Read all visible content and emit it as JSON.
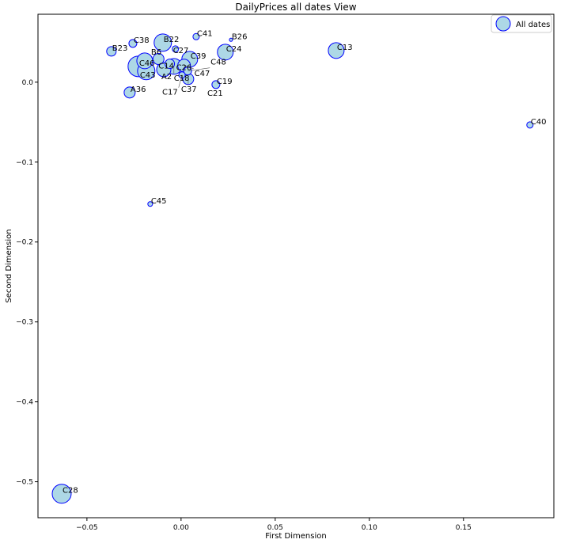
{
  "chart_data": {
    "type": "scatter",
    "title": "DailyPrices all dates View",
    "xlabel": "First Dimension",
    "ylabel": "Second Dimension",
    "xlim": [
      -0.076,
      0.198
    ],
    "ylim": [
      -0.545,
      0.085
    ],
    "xticks": [
      -0.05,
      0.0,
      0.05,
      0.1,
      0.15
    ],
    "xtick_labels": [
      "−0.05",
      "0.00",
      "0.05",
      "0.10",
      "0.15"
    ],
    "yticks": [
      0.0,
      -0.1,
      -0.2,
      -0.3,
      -0.4,
      -0.5
    ],
    "ytick_labels": [
      "0.0",
      "−0.1",
      "−0.2",
      "−0.3",
      "−0.4",
      "−0.5"
    ],
    "grid": false,
    "legend": {
      "position": "top-right",
      "entries": [
        "All dates"
      ]
    },
    "marker_fill": "#add8e6",
    "marker_edge": "#0000ff",
    "series": [
      {
        "name": "All dates",
        "points": [
          {
            "label": "C38",
            "x": -0.0256,
            "y": 0.0485,
            "size": 5
          },
          {
            "label": "B23",
            "x": -0.037,
            "y": 0.0386,
            "size": 6
          },
          {
            "label": "B22",
            "x": -0.0097,
            "y": 0.0495,
            "size": 11
          },
          {
            "label": "C41",
            "x": 0.008,
            "y": 0.057,
            "size": 4
          },
          {
            "label": "B26",
            "x": 0.0265,
            "y": 0.053,
            "size": 2
          },
          {
            "label": "C27",
            "x": -0.003,
            "y": 0.0416,
            "size": 4
          },
          {
            "label": "C24",
            "x": 0.0235,
            "y": 0.0376,
            "size": 10
          },
          {
            "label": "C13",
            "x": 0.0824,
            "y": 0.0396,
            "size": 10
          },
          {
            "label": "C39",
            "x": 0.0046,
            "y": 0.0287,
            "size": 10
          },
          {
            "label": "C19",
            "x": 0.0185,
            "y": -0.003,
            "size": 5
          },
          {
            "label": "C21",
            "x": 0.0135,
            "y": -0.018,
            "size": 0
          },
          {
            "label": "A36",
            "x": -0.0273,
            "y": -0.0129,
            "size": 7
          },
          {
            "label": "C40",
            "x": 0.1853,
            "y": -0.0535,
            "size": 4
          },
          {
            "label": "C45",
            "x": -0.0164,
            "y": -0.1525,
            "size": 3
          },
          {
            "label": "C28",
            "x": -0.0634,
            "y": -0.515,
            "size": 12
          },
          {
            "label": "C46",
            "x": -0.0227,
            "y": 0.0198,
            "size": 13
          },
          {
            "label": "C43",
            "x": -0.0185,
            "y": 0.0139,
            "size": 11
          },
          {
            "label": "B6",
            "x": -0.0193,
            "y": 0.0267,
            "size": 10
          },
          {
            "label": "C14",
            "x": -0.012,
            "y": 0.029,
            "size": 7
          },
          {
            "label": "A2",
            "x": -0.0092,
            "y": 0.0158,
            "size": 9
          },
          {
            "label": "C26",
            "x": -0.006,
            "y": 0.023,
            "size": 6
          },
          {
            "label": "C18",
            "x": -0.0038,
            "y": 0.0198,
            "size": 10
          },
          {
            "label": "C47",
            "x": 0.0016,
            "y": 0.0208,
            "size": 8
          },
          {
            "label": "C48",
            "x": 0.0035,
            "y": 0.014,
            "size": 5
          },
          {
            "label": "C37",
            "x": 0.0038,
            "y": 0.004,
            "size": 7
          },
          {
            "label": "C17",
            "x": 0.0005,
            "y": 0.009,
            "size": 4
          }
        ]
      }
    ]
  }
}
